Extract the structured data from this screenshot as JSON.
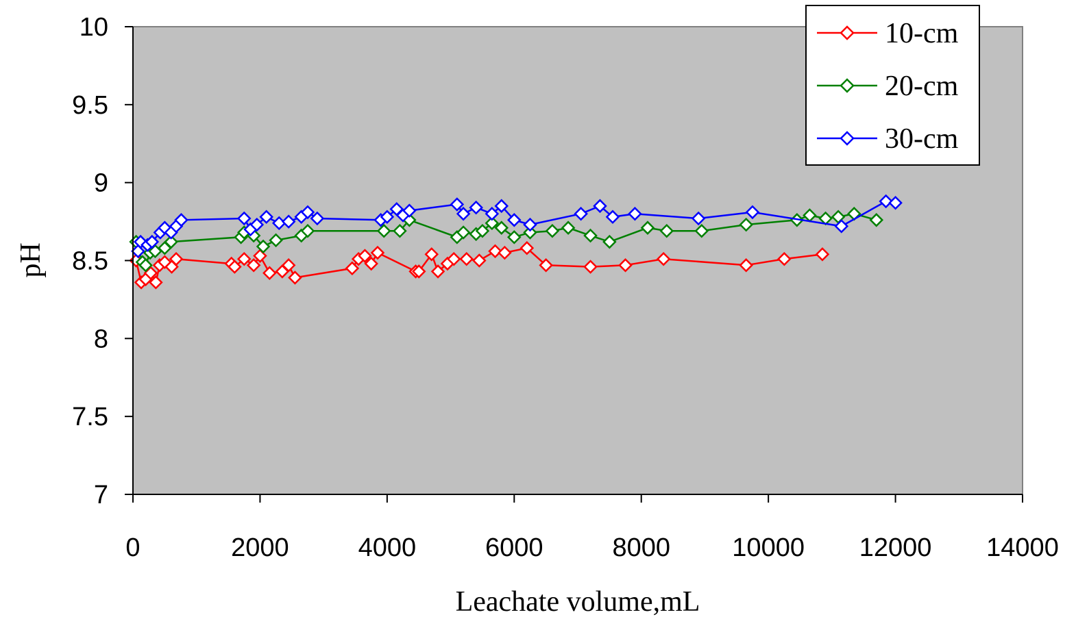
{
  "chart_data": {
    "type": "line",
    "title": "",
    "xlabel": "Leachate volume,mL",
    "ylabel": "pH",
    "xlim": [
      0,
      14000
    ],
    "ylim": [
      7,
      10
    ],
    "x_ticks": [
      0,
      2000,
      4000,
      6000,
      8000,
      10000,
      12000,
      14000
    ],
    "y_ticks": [
      7,
      7.5,
      8,
      8.5,
      9,
      9.5,
      10
    ],
    "x_tick_labels": [
      "0",
      "2000",
      "4000",
      "6000",
      "8000",
      "10000",
      "12000",
      "14000"
    ],
    "y_tick_labels": [
      "7",
      "7.5",
      "8",
      "8.5",
      "9",
      "9.5",
      "10"
    ],
    "grid": false,
    "plot_background": "#c0c0c0",
    "marker": "diamond",
    "legend_position": "top-right",
    "series": [
      {
        "name": "10-cm",
        "color": "#ff0000",
        "x": [
          50,
          130,
          200,
          280,
          360,
          420,
          500,
          610,
          680,
          1550,
          1600,
          1750,
          1900,
          2000,
          2150,
          2350,
          2450,
          2550,
          3450,
          3550,
          3650,
          3750,
          3850,
          4450,
          4500,
          4700,
          4800,
          4950,
          5050,
          5250,
          5450,
          5700,
          5850,
          6200,
          6500,
          7200,
          7750,
          8350,
          9650,
          10250,
          10850
        ],
        "y": [
          8.5,
          8.36,
          8.38,
          8.42,
          8.36,
          8.47,
          8.49,
          8.46,
          8.51,
          8.48,
          8.46,
          8.51,
          8.47,
          8.53,
          8.42,
          8.43,
          8.47,
          8.39,
          8.45,
          8.51,
          8.53,
          8.48,
          8.55,
          8.43,
          8.43,
          8.54,
          8.43,
          8.48,
          8.51,
          8.51,
          8.5,
          8.56,
          8.55,
          8.58,
          8.47,
          8.46,
          8.47,
          8.51,
          8.47,
          8.51,
          8.54
        ]
      },
      {
        "name": "20-cm",
        "color": "#008000",
        "x": [
          50,
          150,
          200,
          270,
          350,
          500,
          600,
          1700,
          1750,
          1900,
          2050,
          2250,
          2650,
          2750,
          3950,
          4200,
          4350,
          5100,
          5200,
          5400,
          5500,
          5650,
          5800,
          6000,
          6250,
          6600,
          6850,
          7200,
          7500,
          8100,
          8400,
          8950,
          9650,
          10450,
          10650,
          10900,
          11100,
          11350,
          11700
        ],
        "y": [
          8.62,
          8.49,
          8.47,
          8.55,
          8.56,
          8.58,
          8.62,
          8.65,
          8.68,
          8.66,
          8.59,
          8.63,
          8.66,
          8.69,
          8.69,
          8.69,
          8.76,
          8.65,
          8.68,
          8.67,
          8.69,
          8.74,
          8.71,
          8.65,
          8.68,
          8.69,
          8.71,
          8.66,
          8.62,
          8.71,
          8.69,
          8.69,
          8.73,
          8.76,
          8.79,
          8.77,
          8.78,
          8.8,
          8.76
        ]
      },
      {
        "name": "30-cm",
        "color": "#0000ff",
        "x": [
          80,
          120,
          230,
          300,
          430,
          500,
          600,
          680,
          760,
          1750,
          1850,
          1950,
          2100,
          2300,
          2450,
          2650,
          2750,
          2900,
          3900,
          4000,
          4150,
          4250,
          4350,
          5100,
          5200,
          5400,
          5650,
          5800,
          6000,
          6250,
          7050,
          7350,
          7550,
          7900,
          8900,
          9750,
          11150,
          11850,
          12000
        ],
        "y": [
          8.56,
          8.62,
          8.6,
          8.62,
          8.68,
          8.71,
          8.68,
          8.72,
          8.76,
          8.77,
          8.7,
          8.73,
          8.78,
          8.74,
          8.75,
          8.78,
          8.81,
          8.77,
          8.76,
          8.78,
          8.83,
          8.79,
          8.82,
          8.86,
          8.8,
          8.84,
          8.8,
          8.85,
          8.76,
          8.73,
          8.8,
          8.85,
          8.78,
          8.8,
          8.77,
          8.81,
          8.72,
          8.88,
          8.87
        ]
      }
    ]
  }
}
